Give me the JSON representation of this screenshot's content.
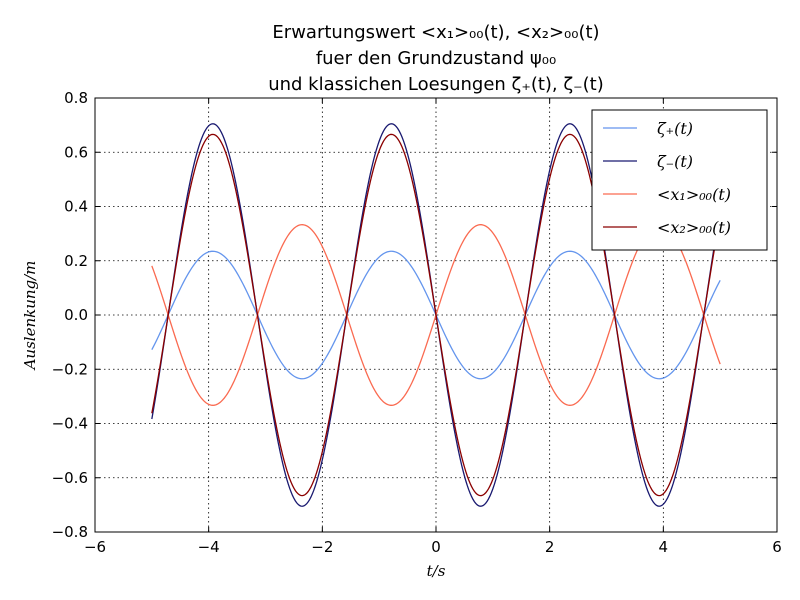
{
  "chart_data": {
    "type": "line",
    "title_lines": [
      "Erwartungswert <x₁>₀₀(t), <x₂>₀₀(t)",
      "fuer den Grundzustand ψ₀₀",
      "und klassichen Loesungen ζ₊(t), ζ₋(t)"
    ],
    "xlabel": "t/s",
    "ylabel": "Auslenkung/m",
    "xlim": [
      -6,
      6
    ],
    "ylim": [
      -0.8,
      0.8
    ],
    "xticks": [
      -6,
      -4,
      -2,
      0,
      2,
      4,
      6
    ],
    "yticks": [
      -0.8,
      -0.6,
      -0.4,
      -0.2,
      0.0,
      0.2,
      0.4,
      0.6,
      0.8
    ],
    "xtick_labels": [
      "−6",
      "−4",
      "−2",
      "0",
      "2",
      "4",
      "6"
    ],
    "ytick_labels": [
      "−0.8",
      "−0.6",
      "−0.4",
      "−0.2",
      "0.0",
      "0.2",
      "0.4",
      "0.6",
      "0.8"
    ],
    "grid": true,
    "legend_position": "top-right",
    "x_range": [
      -5,
      5
    ],
    "series": [
      {
        "name": "ζ₊(t)",
        "color": "#6495ed",
        "amplitude": -0.235,
        "omega": 2.0
      },
      {
        "name": "ζ₋(t)",
        "color": "#191970",
        "amplitude": -0.705,
        "omega": 2.0
      },
      {
        "name": "<x₁>₀₀(t)",
        "color": "#fa6a50",
        "amplitude": 0.333,
        "omega": 2.0
      },
      {
        "name": "<x₂>₀₀(t)",
        "color": "#8b0000",
        "amplitude": -0.666,
        "omega": 2.0
      }
    ]
  }
}
